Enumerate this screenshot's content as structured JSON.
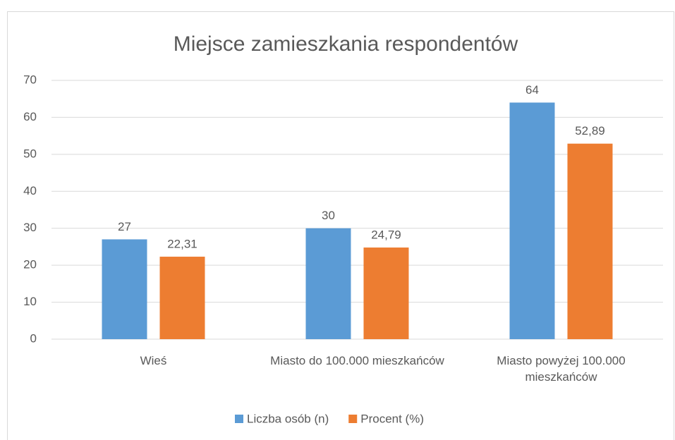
{
  "chart_data": {
    "type": "bar",
    "title": "Miejsce zamieszkania respondentów",
    "categories": [
      "Wieś",
      "Miasto do 100.000 mieszkańców",
      "Miasto powyżej 100.000 mieszkańców"
    ],
    "series": [
      {
        "name": "Liczba osób (n)",
        "color": "#5b9bd5",
        "values": [
          27,
          30,
          64
        ],
        "value_labels": [
          "27",
          "30",
          "64"
        ]
      },
      {
        "name": "Procent (%)",
        "color": "#ed7d31",
        "values": [
          22.31,
          24.79,
          52.89
        ],
        "value_labels": [
          "22,31",
          "24,79",
          "52,89"
        ]
      }
    ],
    "ylim": [
      0,
      70
    ],
    "yticks": [
      0,
      10,
      20,
      30,
      40,
      50,
      60,
      70
    ],
    "grid": true,
    "legend": "bottom"
  }
}
